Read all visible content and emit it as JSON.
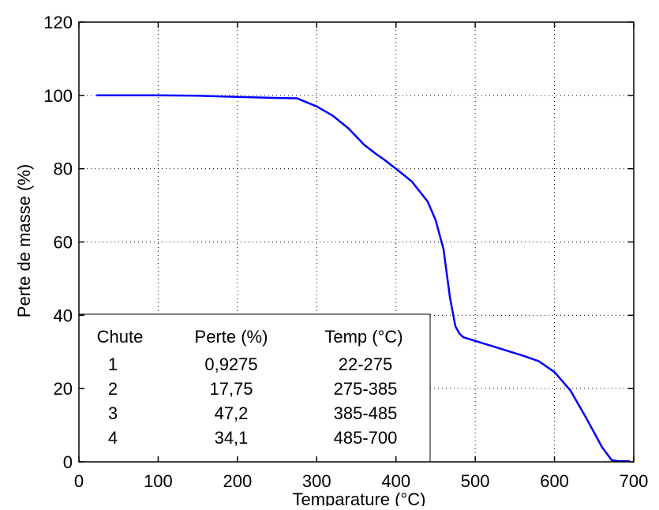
{
  "chart_data": {
    "type": "line",
    "xlabel": "Temparature (°C)",
    "ylabel": "Perte de masse (%)",
    "xlim": [
      0,
      700
    ],
    "ylim": [
      0,
      120
    ],
    "x_ticks": [
      0,
      100,
      200,
      300,
      400,
      500,
      600,
      700
    ],
    "y_ticks": [
      0,
      20,
      40,
      60,
      80,
      100,
      120
    ],
    "grid": true,
    "series": [
      {
        "color": "#0000ff",
        "x": [
          22,
          50,
          100,
          150,
          200,
          250,
          275,
          300,
          320,
          340,
          360,
          375,
          385,
          400,
          420,
          440,
          450,
          460,
          468,
          475,
          480,
          485,
          500,
          530,
          560,
          580,
          600,
          620,
          640,
          660,
          672,
          680,
          695
        ],
        "y": [
          100,
          100,
          100,
          99.9,
          99.6,
          99.3,
          99.2,
          97,
          94.5,
          91,
          86.5,
          84,
          82.5,
          80,
          76.5,
          71,
          66,
          58,
          45,
          37,
          35,
          34,
          33,
          31,
          29,
          27.5,
          24.5,
          19.5,
          12,
          4,
          0.5,
          0.2,
          0.2
        ]
      }
    ],
    "table": {
      "headers": [
        "Chute",
        "Perte (%)",
        "Temp (°C)"
      ],
      "rows": [
        [
          "1",
          "0,9275",
          "22-275"
        ],
        [
          "2",
          "17,75",
          "275-385"
        ],
        [
          "3",
          "47,2",
          "385-485"
        ],
        [
          "4",
          "34,1",
          "485-700"
        ]
      ]
    }
  }
}
